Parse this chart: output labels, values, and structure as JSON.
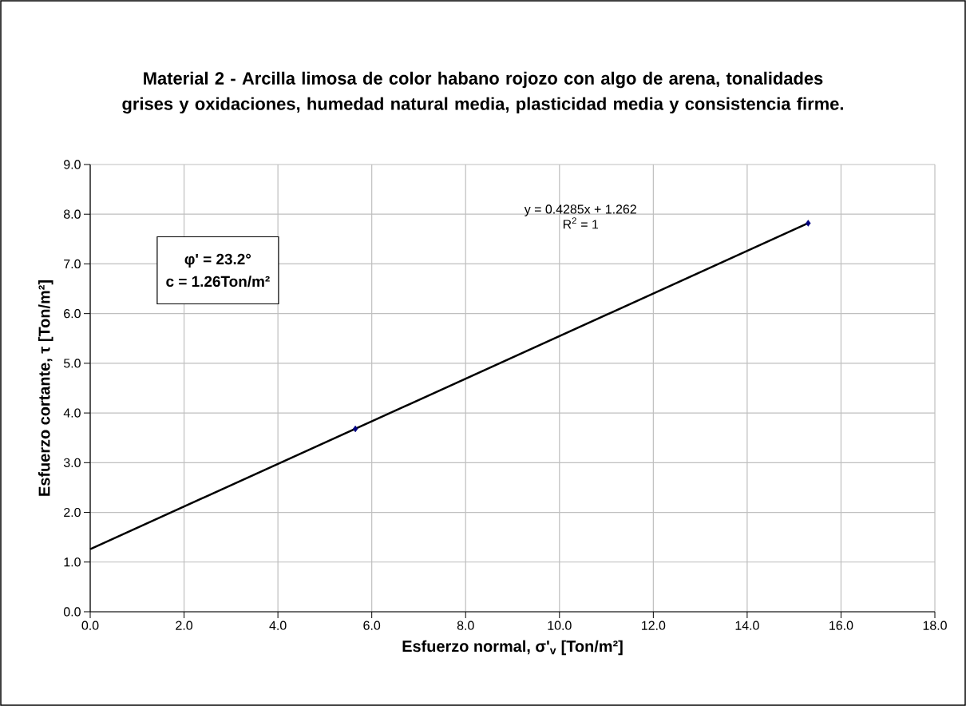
{
  "chart_data": {
    "type": "scatter",
    "title": "Material 2 - Arcilla limosa de color habano rojozo con algo de arena, tonalidades grises y oxidaciones, humedad natural media, plasticidad media y consistencia firme.",
    "xlabel": "Esfuerzo normal, σ'$_{v}$ [Ton/m²]",
    "ylabel": "Esfuerzo cortante, τ [Ton/m²]",
    "series": [
      {
        "color": "#000080",
        "marker": "diamond",
        "x": [
          5.65,
          15.3
        ],
        "values": [
          3.68,
          7.82
        ]
      },
      {
        "type": "line",
        "color": "#000000",
        "marker": "none",
        "line_style": "solid",
        "x": [
          0,
          15.3
        ],
        "values": [
          1.26,
          7.82
        ]
      }
    ],
    "xlim": [
      0,
      18
    ],
    "ylim": [
      0,
      9
    ],
    "xticks": [
      {
        "value": 0,
        "label": "0.0"
      },
      {
        "value": 2,
        "label": "2.0"
      },
      {
        "value": 4,
        "label": "4.0"
      },
      {
        "value": 6,
        "label": "6.0"
      },
      {
        "value": 8,
        "label": "8.0"
      },
      {
        "value": 10,
        "label": "10.0"
      },
      {
        "value": 12,
        "label": "12.0"
      },
      {
        "value": 14,
        "label": "14.0"
      },
      {
        "value": 16,
        "label": "16.0"
      },
      {
        "value": 18,
        "label": "18.0"
      }
    ],
    "yticks": [
      {
        "value": 0,
        "label": "0.0"
      },
      {
        "value": 1,
        "label": "1.0"
      },
      {
        "value": 2,
        "label": "2.0"
      },
      {
        "value": 3,
        "label": "3.0"
      },
      {
        "value": 4,
        "label": "4.0"
      },
      {
        "value": 5,
        "label": "5.0"
      },
      {
        "value": 6,
        "label": "6.0"
      },
      {
        "value": 7,
        "label": "7.0"
      },
      {
        "value": 8,
        "label": "8.0"
      },
      {
        "value": 9,
        "label": "9.0"
      }
    ],
    "grid": true,
    "annotations": [
      "y = 0.4285x + 1.262",
      "R$^{2}$ = 1",
      "φ' = 23.2°",
      "c = 1.26Ton/m²"
    ]
  }
}
